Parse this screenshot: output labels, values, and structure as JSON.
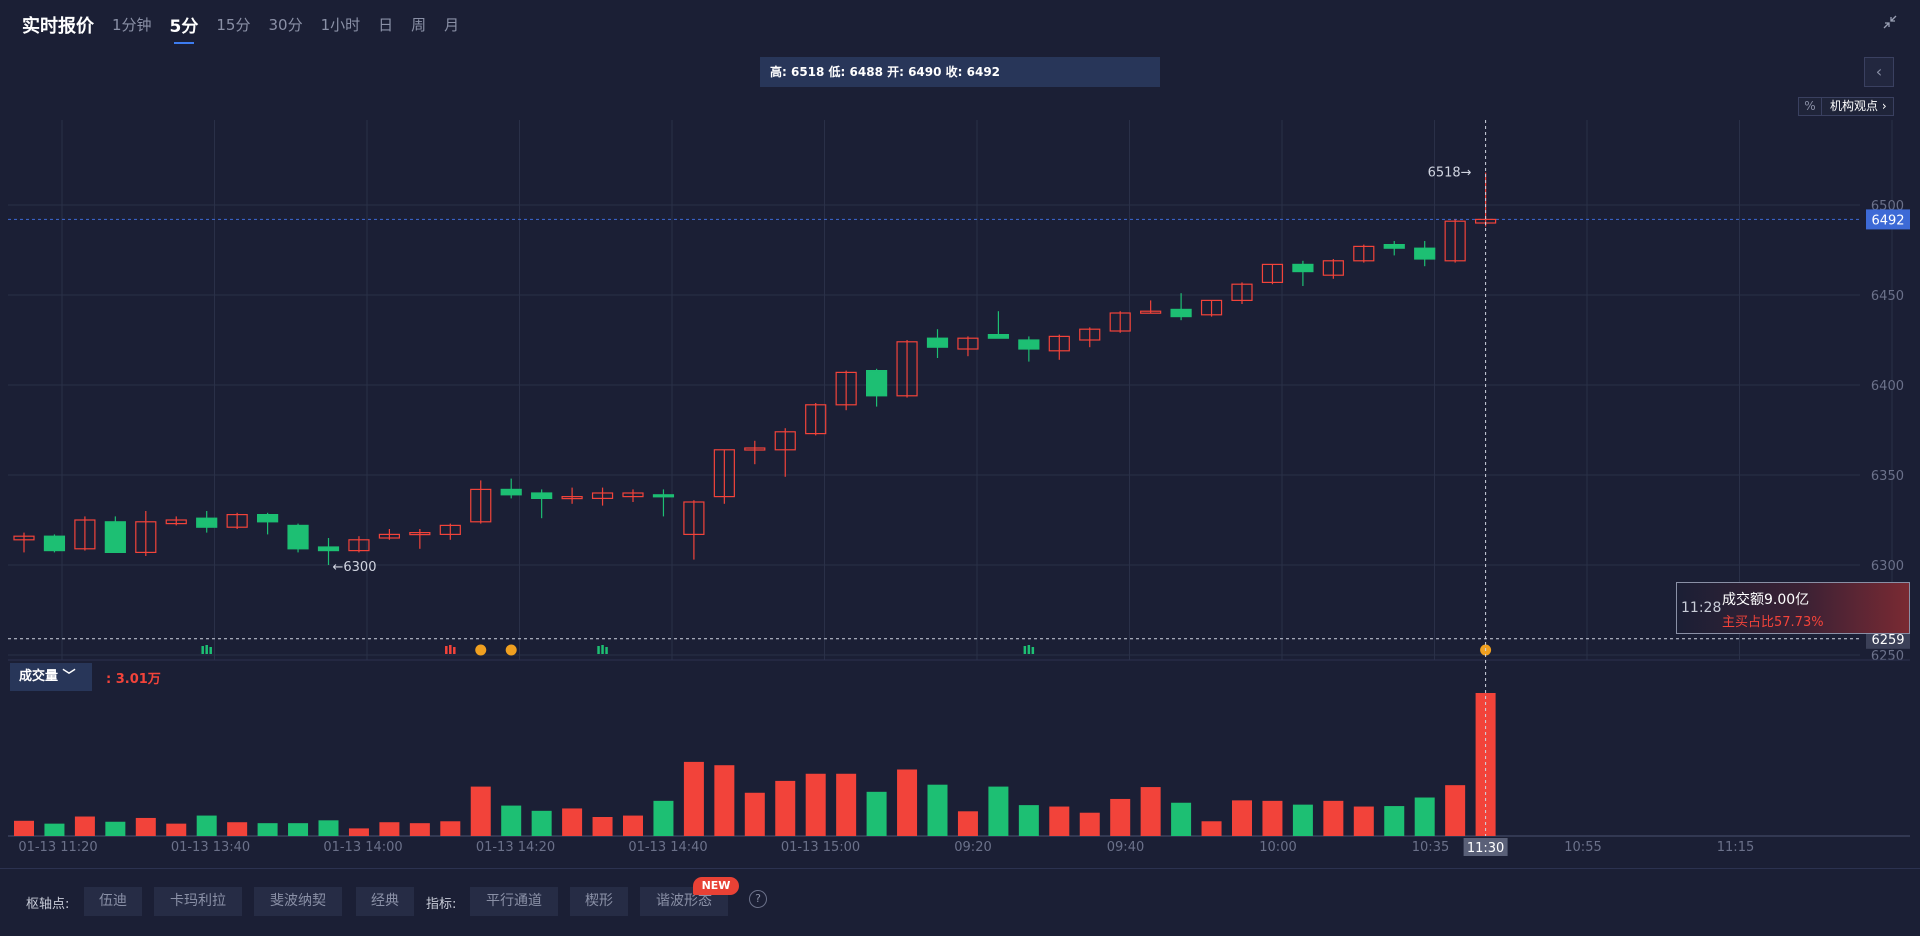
{
  "header": {
    "title": "实时报价",
    "tabs": [
      "1分钟",
      "5分",
      "15分",
      "30分",
      "1小时",
      "日",
      "周",
      "月"
    ],
    "active_tab": 1
  },
  "ohlc": {
    "text": "高: 6518 低: 6488 开: 6490 收: 6492"
  },
  "institution": {
    "icon_label": "%",
    "label": "机构观点",
    "chevron": "›"
  },
  "volume": {
    "selector_label": "成交量",
    "value": ": 3.01万"
  },
  "tooltip": {
    "time": "11:28",
    "amount": "成交额9.00亿",
    "ratio": "主买占比57.73%"
  },
  "bottom": {
    "pivot_label": "枢轴点:",
    "pivot_buttons": [
      "伍迪",
      "卡玛利拉",
      "斐波纳契",
      "经典"
    ],
    "indicator_label": "指标:",
    "indicator_buttons": [
      "平行通道",
      "楔形",
      "谐波形态"
    ],
    "new_badge": "NEW",
    "help": "?"
  },
  "colors": {
    "up": "#f2433a",
    "down": "#1dbf73",
    "grid": "#2a3048",
    "price_tag": "#3d6ad6",
    "crosshair_tag": "#8a90a6"
  },
  "chart_data": {
    "type": "candlestick",
    "price_axis": {
      "ticks": [
        6500,
        6450,
        6400,
        6350,
        6300,
        6250
      ]
    },
    "last_price": 6492,
    "crosshair_price": 6259,
    "crosshair_time": "11:30",
    "high_marker": "6518",
    "low_marker": "6300",
    "x_labels": [
      "01-13 11:20",
      "01-13 13:40",
      "01-13 14:00",
      "01-13 14:20",
      "01-13 14:40",
      "01-13 15:00",
      "09:20",
      "09:40",
      "10:00",
      "10:35",
      "10:55",
      "11:15"
    ],
    "candles": [
      {
        "o": 6314,
        "h": 6318,
        "l": 6307,
        "c": 6316
      },
      {
        "o": 6316,
        "h": 6317,
        "l": 6307,
        "c": 6308
      },
      {
        "o": 6309,
        "h": 6327,
        "l": 6308,
        "c": 6325
      },
      {
        "o": 6324,
        "h": 6327,
        "l": 6307,
        "c": 6307
      },
      {
        "o": 6307,
        "h": 6330,
        "l": 6305,
        "c": 6324
      },
      {
        "o": 6323,
        "h": 6327,
        "l": 6322,
        "c": 6325
      },
      {
        "o": 6326,
        "h": 6330,
        "l": 6318,
        "c": 6321
      },
      {
        "o": 6321,
        "h": 6329,
        "l": 6320,
        "c": 6328
      },
      {
        "o": 6328,
        "h": 6329,
        "l": 6317,
        "c": 6324
      },
      {
        "o": 6322,
        "h": 6323,
        "l": 6307,
        "c": 6309
      },
      {
        "o": 6310,
        "h": 6315,
        "l": 6300,
        "c": 6308
      },
      {
        "o": 6308,
        "h": 6316,
        "l": 6307,
        "c": 6314
      },
      {
        "o": 6315,
        "h": 6320,
        "l": 6314,
        "c": 6317
      },
      {
        "o": 6317,
        "h": 6320,
        "l": 6309,
        "c": 6318
      },
      {
        "o": 6317,
        "h": 6323,
        "l": 6314,
        "c": 6322
      },
      {
        "o": 6324,
        "h": 6347,
        "l": 6323,
        "c": 6342
      },
      {
        "o": 6342,
        "h": 6348,
        "l": 6337,
        "c": 6339
      },
      {
        "o": 6340,
        "h": 6342,
        "l": 6326,
        "c": 6337
      },
      {
        "o": 6338,
        "h": 6343,
        "l": 6334,
        "c": 6338
      },
      {
        "o": 6337,
        "h": 6343,
        "l": 6333,
        "c": 6340
      },
      {
        "o": 6338,
        "h": 6342,
        "l": 6335,
        "c": 6340
      },
      {
        "o": 6339,
        "h": 6342,
        "l": 6327,
        "c": 6338
      },
      {
        "o": 6317,
        "h": 6336,
        "l": 6303,
        "c": 6335
      },
      {
        "o": 6338,
        "h": 6364,
        "l": 6334,
        "c": 6364
      },
      {
        "o": 6365,
        "h": 6369,
        "l": 6356,
        "c": 6365
      },
      {
        "o": 6364,
        "h": 6376,
        "l": 6349,
        "c": 6374
      },
      {
        "o": 6373,
        "h": 6390,
        "l": 6372,
        "c": 6389
      },
      {
        "o": 6389,
        "h": 6408,
        "l": 6386,
        "c": 6407
      },
      {
        "o": 6408,
        "h": 6409,
        "l": 6388,
        "c": 6394
      },
      {
        "o": 6394,
        "h": 6425,
        "l": 6393,
        "c": 6424
      },
      {
        "o": 6426,
        "h": 6431,
        "l": 6415,
        "c": 6421
      },
      {
        "o": 6420,
        "h": 6427,
        "l": 6416,
        "c": 6426
      },
      {
        "o": 6428,
        "h": 6441,
        "l": 6426,
        "c": 6426
      },
      {
        "o": 6425,
        "h": 6427,
        "l": 6413,
        "c": 6420
      },
      {
        "o": 6419,
        "h": 6428,
        "l": 6414,
        "c": 6427
      },
      {
        "o": 6425,
        "h": 6432,
        "l": 6421,
        "c": 6431
      },
      {
        "o": 6430,
        "h": 6441,
        "l": 6429,
        "c": 6440
      },
      {
        "o": 6441,
        "h": 6447,
        "l": 6440,
        "c": 6441
      },
      {
        "o": 6442,
        "h": 6451,
        "l": 6436,
        "c": 6438
      },
      {
        "o": 6439,
        "h": 6447,
        "l": 6438,
        "c": 6447
      },
      {
        "o": 6447,
        "h": 6457,
        "l": 6445,
        "c": 6456
      },
      {
        "o": 6457,
        "h": 6467,
        "l": 6456,
        "c": 6467
      },
      {
        "o": 6467,
        "h": 6469,
        "l": 6455,
        "c": 6463
      },
      {
        "o": 6461,
        "h": 6470,
        "l": 6459,
        "c": 6469
      },
      {
        "o": 6469,
        "h": 6478,
        "l": 6468,
        "c": 6477
      },
      {
        "o": 6478,
        "h": 6480,
        "l": 6472,
        "c": 6476
      },
      {
        "o": 6476,
        "h": 6480,
        "l": 6466,
        "c": 6470
      },
      {
        "o": 6469,
        "h": 6492,
        "l": 6468,
        "c": 6491
      },
      {
        "o": 6490,
        "h": 6518,
        "l": 6488,
        "c": 6492
      }
    ],
    "volumes": [
      3.2,
      2.6,
      4.1,
      3.0,
      3.8,
      2.6,
      4.3,
      2.9,
      2.7,
      2.7,
      3.3,
      1.6,
      2.9,
      2.7,
      3.1,
      10.4,
      6.4,
      5.3,
      5.8,
      4.0,
      4.3,
      7.4,
      15.6,
      14.9,
      9.1,
      11.6,
      13.1,
      13.1,
      9.3,
      14.0,
      10.8,
      5.2,
      10.4,
      6.5,
      6.2,
      4.9,
      7.8,
      10.3,
      7.0,
      3.1,
      7.5,
      7.4,
      6.6,
      7.4,
      6.2,
      6.3,
      8.1,
      10.7,
      30.1
    ],
    "markers": [
      {
        "index": 6,
        "type": "down"
      },
      {
        "index": 14,
        "type": "up"
      },
      {
        "index": 15,
        "type": "coin"
      },
      {
        "index": 16,
        "type": "coin"
      },
      {
        "index": 19,
        "type": "down"
      },
      {
        "index": 33,
        "type": "down"
      },
      {
        "index": 48,
        "type": "coin"
      }
    ]
  }
}
